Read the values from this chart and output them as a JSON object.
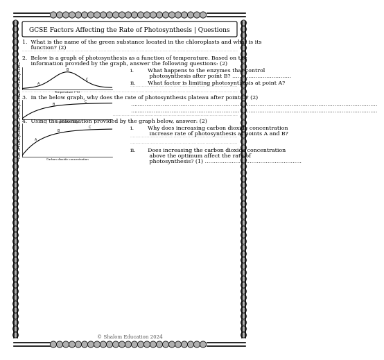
{
  "title": "GCSE Factors Affecting the Rate of Photosynthesis | Questions",
  "background_color": "#ffffff",
  "q1_line1": "1.  What is the name of the green substance located in the chloroplasts and what is its",
  "q1_line2": "     function? (2)",
  "q2_line1": "2.  Below is a graph of photosynthesis as a function of temperature. Based on the",
  "q2_line2": "     information provided by the graph, answer the following questions: (2)",
  "q2i_a": "i.        What happens to the enzymes that control",
  "q2i_b": "           photosynthesis after point B? ……………………………",
  "q2ii_a": "ii.       What factor is limiting photosynthesis at point A?",
  "q2ii_b": "           …………………………………………………………………",
  "q3_line1": "3.  In the below graph, why does the rate of photosynthesis plateau after point C? (2)",
  "q3_ans1": "…………………………………………………………………………………………………………………………",
  "q3_ans2": "…………………………………………………………………………………………………………………………",
  "q4_line1": "4.  Using the information provided by the graph below, answer: (2)",
  "q4i_a": "i.        Why does increasing carbon dioxide concentration",
  "q4i_b": "           increase rate of photosynthesis at points A and B?",
  "q4i_ans1": "…………………………………………………………………………………………………………………………",
  "q4i_ans2": "…………………………………………………………………………………………………………………………",
  "q4ii_a": "ii.       Does increasing the carbon dioxide concentration",
  "q4ii_b": "           above the optimum affect the rate of",
  "q4ii_c": "           photosynthesis? (1) ………………………………………………",
  "footer": "© Shalom Education 2024",
  "graph2_xlabel": "Temperature (°C)",
  "graph2_ylabel": "Rate of Photosynthesis",
  "graph3_xlabel": "Light Intensity",
  "graph3_ylabel": "Rate of Photosynthesis",
  "graph4_xlabel": "Carbon dioxide concentration",
  "graph4_ylabel": "Rate of Photosynthesis"
}
